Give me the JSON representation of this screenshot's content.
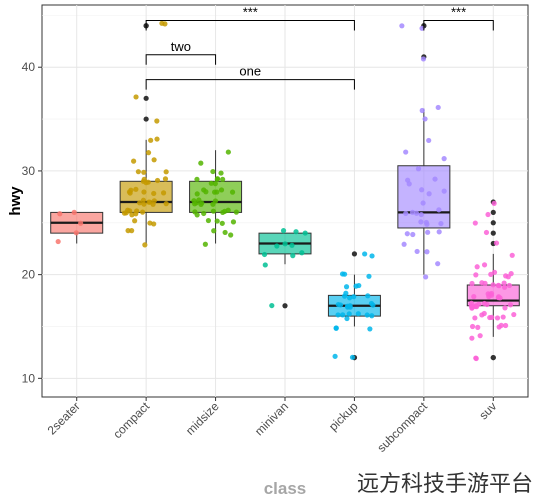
{
  "chart_data": {
    "type": "box",
    "xlabel": "class",
    "ylabel": "hwy",
    "ylim": [
      8.2,
      46
    ],
    "yticks": [
      10,
      20,
      30,
      40
    ],
    "grid": true,
    "legend": "none",
    "categories": [
      "2seater",
      "compact",
      "midsize",
      "minivan",
      "pickup",
      "subcompact",
      "suv"
    ],
    "colors": [
      "#f8766d",
      "#c49a00",
      "#53b400",
      "#00c094",
      "#00b6eb",
      "#a58aff",
      "#fb61d7"
    ],
    "boxes": [
      {
        "category": "2seater",
        "q1": 24,
        "median": 25,
        "q3": 26,
        "whisker_low": 23,
        "whisker_high": 26,
        "outliers": []
      },
      {
        "category": "compact",
        "q1": 26,
        "median": 27,
        "q3": 29,
        "whisker_low": 23,
        "whisker_high": 33,
        "outliers": [
          35,
          37,
          44,
          44
        ]
      },
      {
        "category": "midsize",
        "q1": 26,
        "median": 27,
        "q3": 29,
        "whisker_low": 23,
        "whisker_high": 32,
        "outliers": []
      },
      {
        "category": "minivan",
        "q1": 22,
        "median": 23,
        "q3": 24,
        "whisker_low": 21,
        "whisker_high": 24,
        "outliers": [
          17
        ]
      },
      {
        "category": "pickup",
        "q1": 16,
        "median": 17,
        "q3": 18,
        "whisker_low": 15,
        "whisker_high": 20,
        "outliers": [
          12,
          12,
          22
        ]
      },
      {
        "category": "subcompact",
        "q1": 24.5,
        "median": 26,
        "q3": 30.5,
        "whisker_low": 20,
        "whisker_high": 36,
        "outliers": [
          41,
          44,
          44
        ]
      },
      {
        "category": "suv",
        "q1": 17,
        "median": 17.5,
        "q3": 19,
        "whisker_low": 14,
        "whisker_high": 22,
        "outliers": [
          12,
          12,
          23,
          24,
          25,
          26,
          27
        ]
      }
    ],
    "points": [
      [
        24,
        26,
        26,
        23,
        25
      ],
      [
        26,
        27,
        29,
        28,
        27,
        26,
        29,
        28,
        27,
        26,
        25,
        24,
        30,
        29,
        28,
        27,
        26,
        25,
        23,
        33,
        29,
        28,
        27,
        26,
        31,
        30,
        29,
        27,
        28,
        26,
        35,
        37,
        44,
        44,
        33,
        32,
        30,
        31,
        27,
        28,
        26,
        25,
        24,
        29,
        27,
        26,
        28
      ],
      [
        27,
        26,
        29,
        28,
        27,
        26,
        25,
        24,
        29,
        28,
        27,
        26,
        32,
        31,
        30,
        29,
        28,
        27,
        26,
        25,
        24,
        23,
        29,
        28,
        27,
        26,
        30,
        29,
        28,
        27,
        26,
        25,
        24,
        28,
        27,
        26,
        29,
        28,
        27,
        26,
        25
      ],
      [
        24,
        23,
        22,
        21,
        24,
        23,
        22,
        17,
        23,
        24,
        22
      ],
      [
        17,
        16,
        18,
        19,
        20,
        17,
        16,
        15,
        18,
        17,
        16,
        12,
        12,
        22,
        17,
        18,
        16,
        15,
        19,
        17,
        22,
        20,
        17,
        16,
        18,
        15,
        17,
        16,
        18,
        19,
        17,
        16,
        20
      ],
      [
        29,
        28,
        26,
        25,
        24,
        36,
        35,
        33,
        32,
        30,
        29,
        28,
        26,
        25,
        24,
        23,
        22,
        21,
        20,
        36,
        27,
        26,
        25,
        24,
        41,
        44,
        44,
        28,
        26,
        25,
        31,
        29,
        26,
        24,
        22
      ],
      [
        17,
        18,
        19,
        17,
        16,
        15,
        14,
        17,
        18,
        19,
        20,
        17,
        16,
        15,
        12,
        12,
        19,
        18,
        17,
        17,
        16,
        20,
        19,
        18,
        17,
        16,
        15,
        14,
        20,
        19,
        18,
        17,
        16,
        15,
        20,
        19,
        18,
        17,
        16,
        22,
        21,
        20,
        19,
        18,
        17,
        23,
        24,
        25,
        26,
        27,
        17,
        18,
        19,
        16,
        15,
        20,
        21,
        19,
        18,
        17,
        16,
        17
      ]
    ],
    "brackets": [
      {
        "from": "compact",
        "to": "pickup",
        "y": 44.5,
        "label": "***"
      },
      {
        "from": "subcompact",
        "to": "suv",
        "y": 44.5,
        "label": "***"
      },
      {
        "from": "compact",
        "to": "midsize",
        "y": 41.2,
        "label": "two"
      },
      {
        "from": "compact",
        "to": "pickup",
        "y": 38.8,
        "label": "one"
      }
    ]
  },
  "watermark": "远方科技手游平台"
}
